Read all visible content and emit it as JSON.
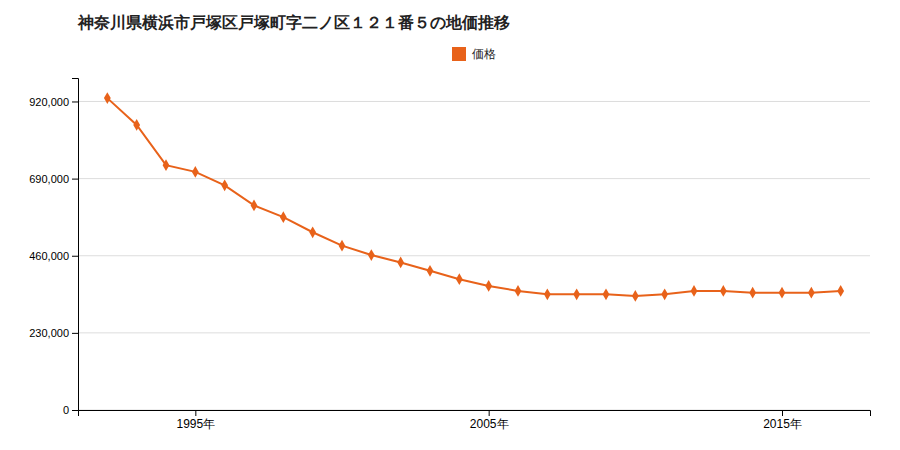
{
  "chart_data": {
    "type": "line",
    "title": "神奈川県横浜市戸塚区戸塚町字二ノ区１２１番５の地価推移",
    "x": [
      1992,
      1993,
      1994,
      1995,
      1996,
      1997,
      1998,
      1999,
      2000,
      2001,
      2002,
      2003,
      2004,
      2005,
      2006,
      2007,
      2008,
      2009,
      2010,
      2011,
      2012,
      2013,
      2014,
      2015,
      2016,
      2017
    ],
    "series": [
      {
        "name": "価格",
        "color": "#E8621A",
        "marker": "diamond",
        "values": [
          930000,
          850000,
          730000,
          710000,
          670000,
          610000,
          575000,
          530000,
          490000,
          462000,
          440000,
          415000,
          390000,
          370000,
          355000,
          345000,
          345000,
          345000,
          340000,
          345000,
          355000,
          355000,
          350000,
          350000,
          350000,
          355000
        ]
      }
    ],
    "xlim": [
      1991,
      2018
    ],
    "xticks": [
      {
        "value": 1995,
        "label": "1995年"
      },
      {
        "value": 2005,
        "label": "2005年"
      },
      {
        "value": 2015,
        "label": "2015年"
      }
    ],
    "ylim": [
      0,
      990000
    ],
    "yticks": [
      0,
      {
        "value": 230000,
        "label": "230,000"
      },
      {
        "value": 460000,
        "label": "460,000"
      },
      {
        "value": 690000,
        "label": "690,000"
      },
      {
        "value": 920000,
        "label": "920,000"
      }
    ],
    "grid": true,
    "legend": "top"
  }
}
